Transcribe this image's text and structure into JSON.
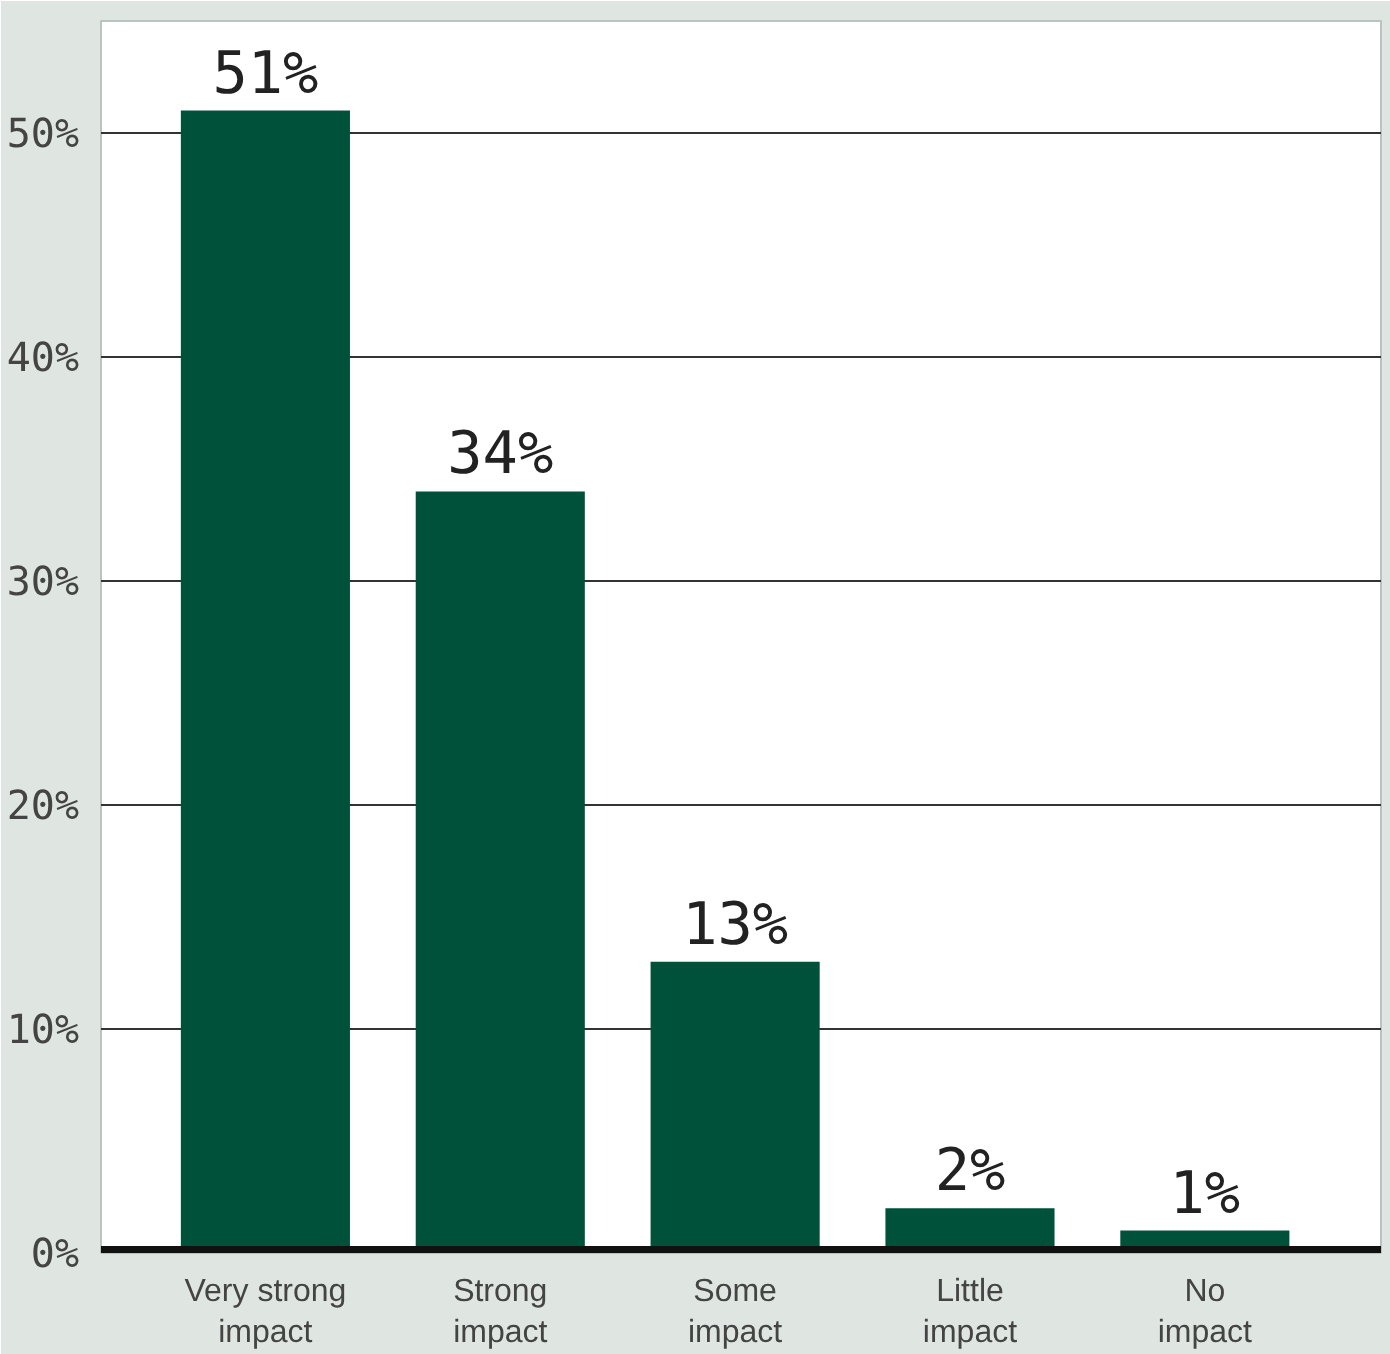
{
  "chart_data": {
    "type": "bar",
    "categories": [
      "Very strong\nimpact",
      "Strong\nimpact",
      "Some\nimpact",
      "Little\nimpact",
      "No\nimpact"
    ],
    "values": [
      51,
      34,
      13,
      2,
      1
    ],
    "value_labels": [
      "51%",
      "34%",
      "13%",
      "2%",
      "1%"
    ],
    "color": "#00513a",
    "ylim": [
      0,
      55
    ],
    "yticks": [
      {
        "value": 0,
        "label": "0%"
      },
      {
        "value": 10,
        "label": "10%"
      },
      {
        "value": 20,
        "label": "20%"
      },
      {
        "value": 30,
        "label": "30%"
      },
      {
        "value": 40,
        "label": "40%"
      },
      {
        "value": 50,
        "label": "50%"
      }
    ],
    "grid": "y"
  }
}
